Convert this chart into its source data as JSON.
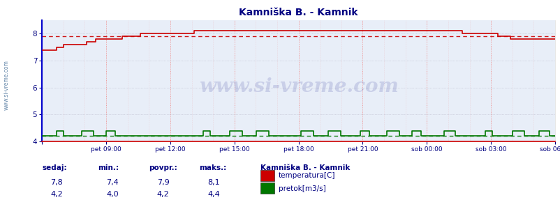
{
  "title": "Kamniška B. - Kamnik",
  "title_color": "#000080",
  "bg_color": "#ffffff",
  "plot_bg_color": "#e8eef8",
  "x_labels": [
    "pet 09:00",
    "pet 12:00",
    "pet 15:00",
    "pet 18:00",
    "pet 21:00",
    "sob 00:00",
    "sob 03:00",
    "sob 06:00"
  ],
  "y_min": 4.0,
  "y_max": 8.5,
  "y_ticks": [
    4,
    5,
    6,
    7,
    8
  ],
  "temp_color": "#cc0000",
  "flow_color": "#007700",
  "temp_avg": 7.9,
  "flow_avg": 4.2,
  "watermark": "www.si-vreme.com",
  "watermark_color": "#000080",
  "left_label": "www.si-vreme.com",
  "legend_title": "Kamniška B. - Kamnik",
  "legend_items": [
    "temperatura[C]",
    "pretok[m3/s]"
  ],
  "legend_colors": [
    "#cc0000",
    "#007700"
  ],
  "stats_headers": [
    "sedaj:",
    "min.:",
    "povpr.:",
    "maks.:"
  ],
  "stats_temp": [
    "7,8",
    "7,4",
    "7,9",
    "8,1"
  ],
  "stats_flow": [
    "4,2",
    "4,0",
    "4,2",
    "4,4"
  ],
  "axis_color": "#000080",
  "tick_color": "#000080",
  "grid_v_color": "#ee9999",
  "grid_h_color": "#bbbbcc",
  "left_spine_color": "#0000cc",
  "bottom_spine_color": "#cc0000",
  "right_spine_color": "#dddddd"
}
